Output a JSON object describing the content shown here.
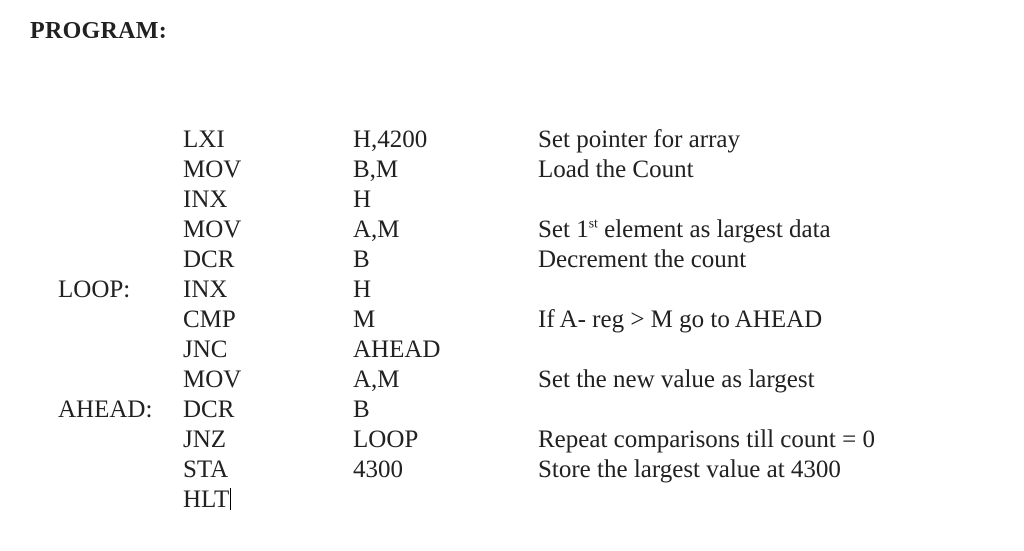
{
  "heading": "PROGRAM:",
  "rows": [
    {
      "label": "",
      "mnem": "LXI",
      "oper": "H,4200",
      "comment": "Set pointer for array"
    },
    {
      "label": "",
      "mnem": "MOV",
      "oper": "B,M",
      "comment": "Load the Count"
    },
    {
      "label": "",
      "mnem": "INX",
      "oper": "H",
      "comment": ""
    },
    {
      "label": "",
      "mnem": "MOV",
      "oper": "A,M",
      "comment": "Set 1",
      "sup": "st",
      "comment_tail": " element as largest data"
    },
    {
      "label": "",
      "mnem": "DCR",
      "oper": "B",
      "comment": "Decrement the count"
    },
    {
      "label": "LOOP:",
      "mnem": "INX",
      "oper": "H",
      "comment": ""
    },
    {
      "label": "",
      "mnem": "CMP",
      "oper": "M",
      "comment": "If A- reg > M go to AHEAD"
    },
    {
      "label": "",
      "mnem": "JNC",
      "oper": "AHEAD",
      "comment": ""
    },
    {
      "label": "",
      "mnem": "MOV",
      "oper": "A,M",
      "comment": "Set the new value as largest"
    },
    {
      "label": "AHEAD:",
      "mnem": "DCR",
      "oper": "B",
      "comment": ""
    },
    {
      "label": "",
      "mnem": "JNZ",
      "oper": "LOOP",
      "comment": "Repeat comparisons till count = 0"
    },
    {
      "label": "",
      "mnem": "STA",
      "oper": "4300",
      "comment": "Store the largest value at 4300"
    },
    {
      "label": "",
      "mnem": "HLT",
      "oper": "",
      "comment": "",
      "cursor": true
    }
  ]
}
